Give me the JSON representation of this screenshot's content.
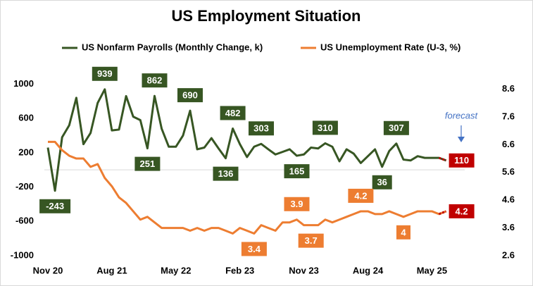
{
  "chart_data": {
    "type": "line",
    "title": "US Employment Situation",
    "categories": [
      "Nov 20",
      null,
      null,
      null,
      null,
      null,
      null,
      null,
      null,
      "Aug 21",
      null,
      null,
      null,
      null,
      null,
      null,
      null,
      null,
      "May 22",
      null,
      null,
      null,
      null,
      null,
      null,
      null,
      null,
      "Feb 23",
      null,
      null,
      null,
      null,
      null,
      null,
      null,
      null,
      "Nov 23",
      null,
      null,
      null,
      null,
      null,
      null,
      null,
      null,
      "Aug 24",
      null,
      null,
      null,
      null,
      null,
      null,
      null,
      null,
      "May 25",
      null,
      null
    ],
    "series": [
      {
        "name": "US Nonfarm Payrolls (Monthly Change, k)",
        "color": "#375623",
        "values": [
          260,
          -243,
          380,
          520,
          840,
          300,
          430,
          780,
          939,
          460,
          470,
          860,
          620,
          580,
          251,
          862,
          480,
          270,
          270,
          400,
          690,
          240,
          260,
          370,
          250,
          136,
          482,
          300,
          150,
          270,
          303,
          240,
          180,
          210,
          240,
          165,
          180,
          260,
          250,
          310,
          270,
          100,
          240,
          190,
          80,
          160,
          240,
          36,
          220,
          307,
          120,
          110,
          160,
          140,
          140,
          140,
          110
        ]
      },
      {
        "name": "US Unemployment Rate (U-3, %)",
        "color": "#ed7d31",
        "axis": "y2",
        "values": [
          6.7,
          6.7,
          6.4,
          6.2,
          6.1,
          6.1,
          5.8,
          5.9,
          5.4,
          5.1,
          4.7,
          4.5,
          4.2,
          3.9,
          4.0,
          3.8,
          3.6,
          3.6,
          3.6,
          3.6,
          3.5,
          3.6,
          3.5,
          3.6,
          3.6,
          3.5,
          3.4,
          3.6,
          3.5,
          3.4,
          3.7,
          3.6,
          3.5,
          3.8,
          3.8,
          3.9,
          3.7,
          3.7,
          3.7,
          3.9,
          3.8,
          3.9,
          4.0,
          4.1,
          4.2,
          4.2,
          4.1,
          4.1,
          4.2,
          4.1,
          4.0,
          4.1,
          4.2,
          4.2,
          4.2,
          4.1,
          4.2
        ]
      }
    ],
    "ylim": [
      -1000,
      1200
    ],
    "yticks": [
      -1000,
      -600,
      -200,
      200,
      600,
      1000
    ],
    "y2lim": [
      2.6,
      9.4
    ],
    "y2ticks": [
      2.6,
      3.6,
      4.6,
      5.6,
      6.6,
      7.6,
      8.6
    ],
    "forecast_label": "forecast",
    "forecast_color": "#c00000"
  }
}
